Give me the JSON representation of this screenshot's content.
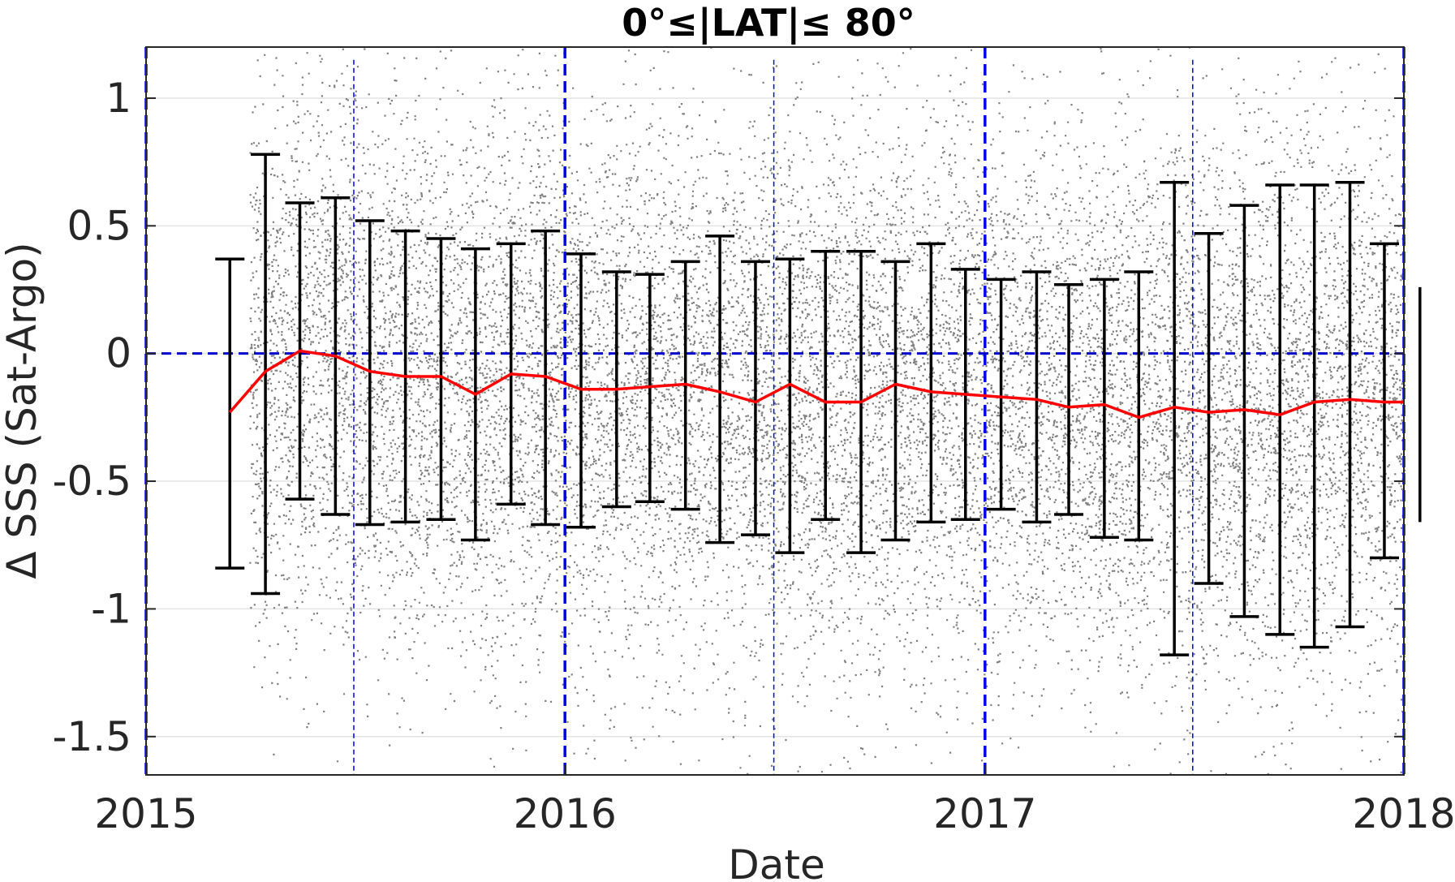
{
  "chart_data": {
    "type": "scatter",
    "title": "0°≤|LAT|≤ 80°",
    "xlabel": "Date",
    "ylabel": "Δ SSS (Sat-Argo)",
    "xlim": [
      "2015-01-01",
      "2018-01-01"
    ],
    "ylim": [
      -1.65,
      1.2
    ],
    "x_ticks": [
      {
        "date": "2015-01-01",
        "label": "2015"
      },
      {
        "date": "2016-01-01",
        "label": "2016"
      },
      {
        "date": "2017-01-01",
        "label": "2017"
      },
      {
        "date": "2018-01-01",
        "label": "2018"
      }
    ],
    "y_ticks": [
      {
        "value": 1,
        "label": "1"
      },
      {
        "value": 0.5,
        "label": "0.5"
      },
      {
        "value": 0,
        "label": "0"
      },
      {
        "value": -0.5,
        "label": "-0.5"
      },
      {
        "value": -1,
        "label": "-1"
      },
      {
        "value": -1.5,
        "label": "-1.5"
      }
    ],
    "grid": "horizontal",
    "scatter": {
      "color": "#808080",
      "x_range": [
        "2015-04-01",
        "2018-01-01"
      ],
      "y_range": [
        -1.65,
        1.2
      ]
    },
    "monthly_stats": {
      "x": [
        "2015-03-15",
        "2015-04-15",
        "2015-05-15",
        "2015-06-15",
        "2015-07-15",
        "2015-08-15",
        "2015-09-15",
        "2015-10-15",
        "2015-11-15",
        "2015-12-15",
        "2016-01-15",
        "2016-02-15",
        "2016-03-15",
        "2016-04-15",
        "2016-05-15",
        "2016-06-15",
        "2016-07-15",
        "2016-08-15",
        "2016-09-15",
        "2016-10-15",
        "2016-11-15",
        "2016-12-15",
        "2017-01-15",
        "2017-02-15",
        "2017-03-15",
        "2017-04-15",
        "2017-05-15",
        "2017-06-15",
        "2017-07-15",
        "2017-08-15",
        "2017-09-15",
        "2017-10-15",
        "2017-11-15",
        "2017-12-15",
        "2018-01-15"
      ],
      "mean": [
        -0.23,
        -0.07,
        0.01,
        -0.01,
        -0.07,
        -0.09,
        -0.09,
        -0.16,
        -0.08,
        -0.09,
        -0.14,
        -0.14,
        -0.13,
        -0.12,
        -0.15,
        -0.19,
        -0.12,
        -0.19,
        -0.19,
        -0.12,
        -0.15,
        -0.16,
        -0.17,
        -0.18,
        -0.21,
        -0.2,
        -0.25,
        -0.21,
        -0.23,
        -0.22,
        -0.24,
        -0.19,
        -0.18,
        -0.19,
        -0.19
      ],
      "upper": [
        0.37,
        0.78,
        0.59,
        0.61,
        0.52,
        0.48,
        0.45,
        0.41,
        0.43,
        0.48,
        0.39,
        0.32,
        0.31,
        0.36,
        0.46,
        0.36,
        0.37,
        0.4,
        0.4,
        0.36,
        0.43,
        0.33,
        0.29,
        0.32,
        0.27,
        0.29,
        0.32,
        0.67,
        0.47,
        0.58,
        0.66,
        0.66,
        0.67,
        0.43,
        0.26
      ],
      "lower": [
        -0.84,
        -0.94,
        -0.57,
        -0.63,
        -0.67,
        -0.66,
        -0.65,
        -0.73,
        -0.59,
        -0.67,
        -0.68,
        -0.6,
        -0.58,
        -0.61,
        -0.74,
        -0.71,
        -0.78,
        -0.65,
        -0.78,
        -0.73,
        -0.66,
        -0.65,
        -0.61,
        -0.66,
        -0.63,
        -0.72,
        -0.73,
        -1.18,
        -0.9,
        -1.03,
        -1.1,
        -1.15,
        -1.07,
        -0.8,
        -0.66
      ],
      "mean_color": "#ff0000",
      "errorbar_color": "#000000"
    },
    "reference_lines": {
      "zero_line": {
        "y": 0,
        "color": "#0000cc",
        "style": "dashed"
      },
      "year_lines": [
        "2015-01-01",
        "2016-01-01",
        "2017-01-01",
        "2018-01-01"
      ],
      "midyear_lines": [
        "2015-07-01",
        "2016-07-01",
        "2017-07-01"
      ],
      "color": "#0000ee"
    }
  }
}
